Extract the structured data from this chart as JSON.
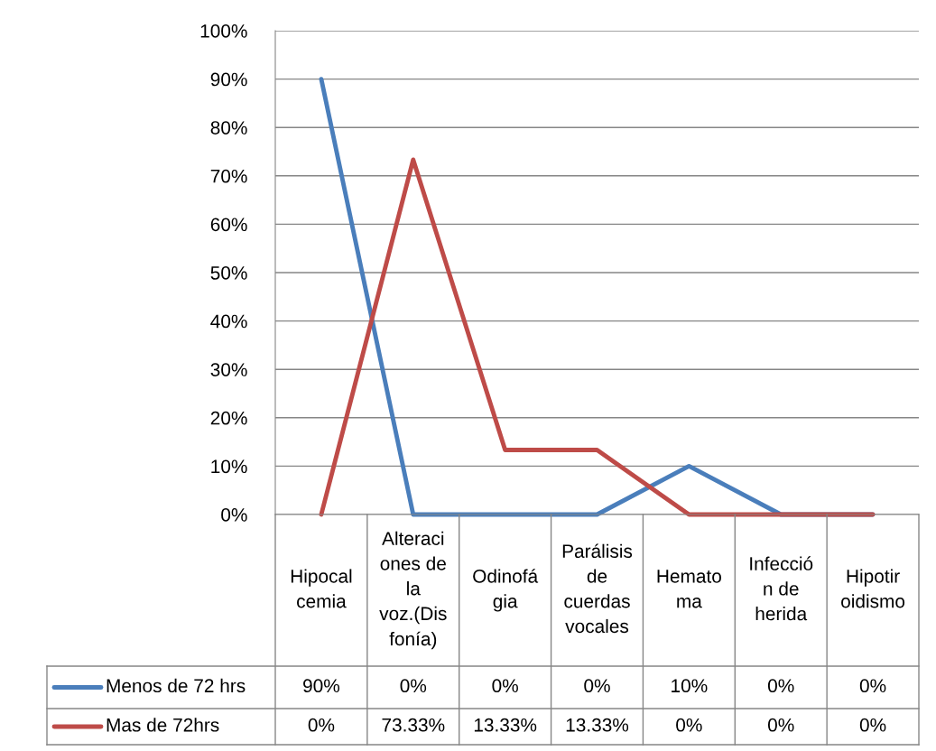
{
  "chart_data": {
    "type": "line",
    "categories": [
      "Hipocal\ncemia",
      "Alteraci\nones de\nla\nvoz.(Dis\nfonía)",
      "Odinofá\ngia",
      "Parálisis\nde\ncuerdas\nvocales",
      "Hemato\nma",
      "Infecció\nn de\nherida",
      "Hipotir\noidismo"
    ],
    "series": [
      {
        "name": "Menos de 72 hrs",
        "color": "#4a7ebb",
        "values": [
          90,
          0,
          0,
          0,
          10,
          0,
          0
        ],
        "value_labels": [
          "90%",
          "0%",
          "0%",
          "0%",
          "10%",
          "0%",
          "0%"
        ]
      },
      {
        "name": "Mas de 72hrs",
        "color": "#be4b48",
        "values": [
          0,
          73.33,
          13.33,
          13.33,
          0,
          0,
          0
        ],
        "value_labels": [
          "0%",
          "73.33%",
          "13.33%",
          "13.33%",
          "0%",
          "0%",
          "0%"
        ]
      }
    ],
    "ylim": [
      0,
      100
    ],
    "yticks": [
      {
        "value": 0,
        "label": "0%"
      },
      {
        "value": 10,
        "label": "10%"
      },
      {
        "value": 20,
        "label": "20%"
      },
      {
        "value": 30,
        "label": "30%"
      },
      {
        "value": 40,
        "label": "40%"
      },
      {
        "value": 50,
        "label": "50%"
      },
      {
        "value": 60,
        "label": "60%"
      },
      {
        "value": 70,
        "label": "70%"
      },
      {
        "value": 80,
        "label": "80%"
      },
      {
        "value": 90,
        "label": "90%"
      },
      {
        "value": 100,
        "label": "100%"
      }
    ],
    "grid": "y",
    "legend": "bottom",
    "marker": "none",
    "line_style": "solid"
  }
}
